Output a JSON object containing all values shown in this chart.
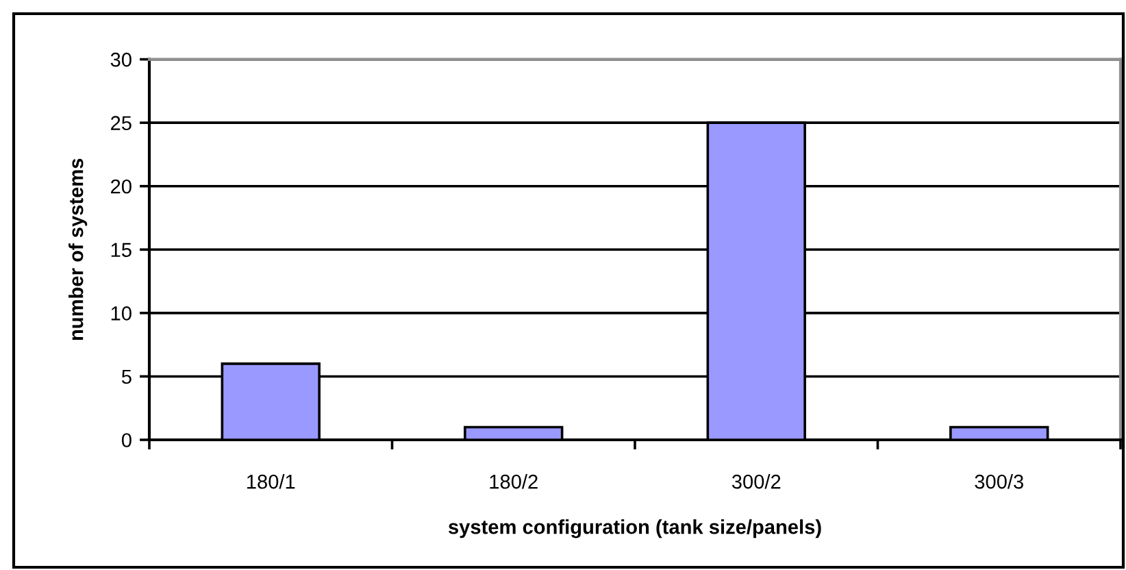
{
  "chart_data": {
    "type": "bar",
    "categories": [
      "180/1",
      "180/2",
      "300/2",
      "300/3"
    ],
    "values": [
      6,
      1,
      25,
      1
    ],
    "color": "#9999ff",
    "xlabel": "system configuration (tank size/panels)",
    "ylabel": "number of systems",
    "ylim": [
      0,
      30
    ],
    "yticks": [
      0,
      5,
      10,
      15,
      20,
      25,
      30
    ],
    "grid": "y"
  }
}
